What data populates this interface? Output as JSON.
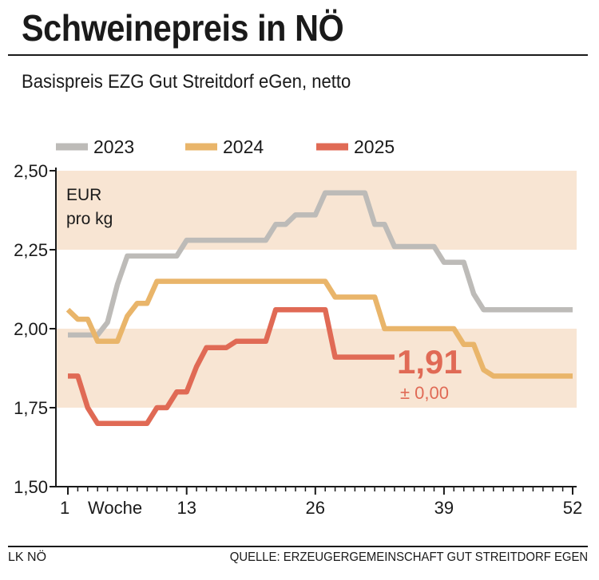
{
  "header": {
    "title": "Schweinepreis in NÖ",
    "subtitle": "Basispreis EZG Gut Streitdorf eGen, netto"
  },
  "footer": {
    "left": "LK NÖ",
    "right": "QUELLE: ERZEUGERGEMEINSCHAFT GUT STREITDORF EGEN"
  },
  "chart_data": {
    "type": "line",
    "title": "Schweinepreis in NÖ",
    "subtitle": "Basispreis EZG Gut Streitdorf eGen, netto",
    "ylabel": "EUR pro kg",
    "ylabel_lines": [
      "EUR",
      "pro kg"
    ],
    "xlabel": "Woche",
    "ylim": [
      1.5,
      2.5
    ],
    "xlim": [
      1,
      52
    ],
    "yticks": [
      1.5,
      1.75,
      2.0,
      2.25,
      2.5
    ],
    "ytick_labels": [
      "1,50",
      "1,75",
      "2,00",
      "2,25",
      "2,50"
    ],
    "xticks": [
      1,
      13,
      26,
      39,
      52
    ],
    "xtick_labels": [
      "1",
      "13",
      "26",
      "39",
      "52"
    ],
    "grid": false,
    "bands": [
      [
        1.75,
        2.0
      ],
      [
        2.25,
        2.5
      ]
    ],
    "legend_position": "top",
    "series": [
      {
        "name": "2023",
        "color": "#bdbbb8",
        "x": [
          1,
          2,
          3,
          4,
          5,
          6,
          7,
          8,
          9,
          10,
          11,
          12,
          13,
          14,
          15,
          16,
          17,
          18,
          19,
          20,
          21,
          22,
          23,
          24,
          25,
          26,
          27,
          28,
          29,
          30,
          31,
          32,
          33,
          34,
          35,
          36,
          37,
          38,
          39,
          40,
          41,
          42,
          43,
          44,
          45,
          46,
          47,
          48,
          49,
          50,
          51,
          52
        ],
        "values": [
          1.98,
          1.98,
          1.98,
          1.98,
          2.02,
          2.14,
          2.23,
          2.23,
          2.23,
          2.23,
          2.23,
          2.23,
          2.28,
          2.28,
          2.28,
          2.28,
          2.28,
          2.28,
          2.28,
          2.28,
          2.28,
          2.33,
          2.33,
          2.36,
          2.36,
          2.36,
          2.43,
          2.43,
          2.43,
          2.43,
          2.43,
          2.33,
          2.33,
          2.26,
          2.26,
          2.26,
          2.26,
          2.26,
          2.21,
          2.21,
          2.21,
          2.11,
          2.06,
          2.06,
          2.06,
          2.06,
          2.06,
          2.06,
          2.06,
          2.06,
          2.06,
          2.06
        ]
      },
      {
        "name": "2024",
        "color": "#e9b56a",
        "x": [
          1,
          2,
          3,
          4,
          5,
          6,
          7,
          8,
          9,
          10,
          11,
          12,
          13,
          14,
          15,
          16,
          17,
          18,
          19,
          20,
          21,
          22,
          23,
          24,
          25,
          26,
          27,
          28,
          29,
          30,
          31,
          32,
          33,
          34,
          35,
          36,
          37,
          38,
          39,
          40,
          41,
          42,
          43,
          44,
          45,
          46,
          47,
          48,
          49,
          50,
          51,
          52
        ],
        "values": [
          2.06,
          2.03,
          2.03,
          1.96,
          1.96,
          1.96,
          2.04,
          2.08,
          2.08,
          2.15,
          2.15,
          2.15,
          2.15,
          2.15,
          2.15,
          2.15,
          2.15,
          2.15,
          2.15,
          2.15,
          2.15,
          2.15,
          2.15,
          2.15,
          2.15,
          2.15,
          2.15,
          2.1,
          2.1,
          2.1,
          2.1,
          2.1,
          2.0,
          2.0,
          2.0,
          2.0,
          2.0,
          2.0,
          2.0,
          2.0,
          1.95,
          1.95,
          1.87,
          1.85,
          1.85,
          1.85,
          1.85,
          1.85,
          1.85,
          1.85,
          1.85,
          1.85
        ]
      },
      {
        "name": "2025",
        "color": "#e06a55",
        "x": [
          1,
          2,
          3,
          4,
          5,
          6,
          7,
          8,
          9,
          10,
          11,
          12,
          13,
          14,
          15,
          16,
          17,
          18,
          19,
          20,
          21,
          22,
          23,
          24,
          25,
          26,
          27,
          28,
          29,
          30,
          31,
          32,
          33,
          34
        ],
        "values": [
          1.85,
          1.85,
          1.75,
          1.7,
          1.7,
          1.7,
          1.7,
          1.7,
          1.7,
          1.75,
          1.75,
          1.8,
          1.8,
          1.88,
          1.94,
          1.94,
          1.94,
          1.96,
          1.96,
          1.96,
          1.96,
          2.06,
          2.06,
          2.06,
          2.06,
          2.06,
          2.06,
          1.91,
          1.91,
          1.91,
          1.91,
          1.91,
          1.91,
          1.91
        ]
      }
    ],
    "annotations": {
      "latest_value": "1,91",
      "latest_change": "± 0,00"
    }
  }
}
